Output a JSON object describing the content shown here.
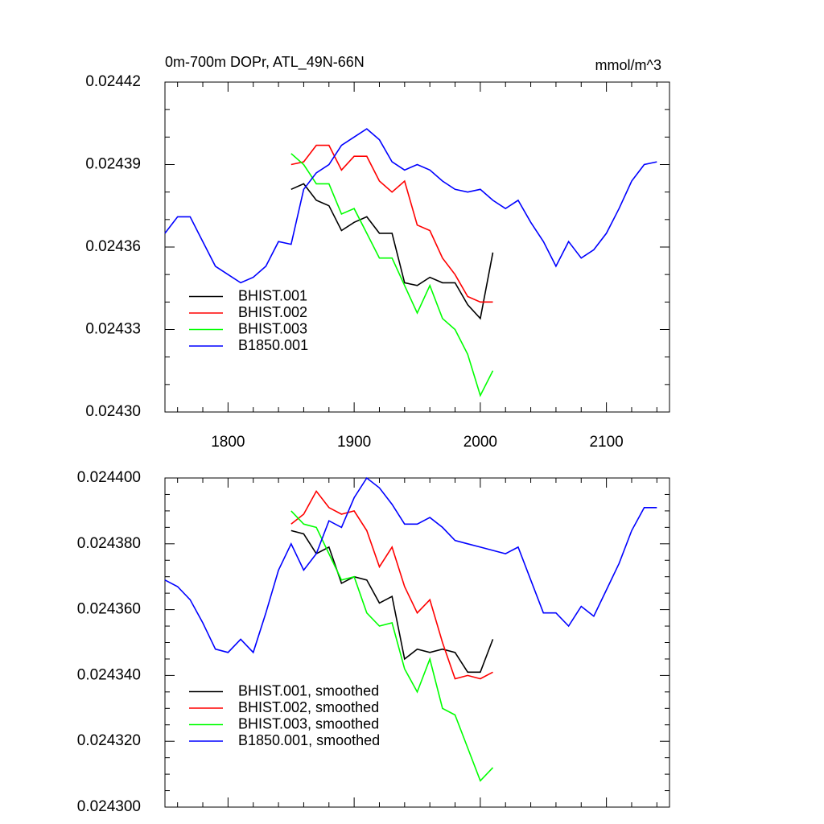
{
  "chart_data": [
    {
      "type": "line",
      "title": "0m-700m DOPr, ATL_49N-66N",
      "units_label": "mmol/m^3",
      "x": [
        1750,
        1760,
        1770,
        1780,
        1790,
        1800,
        1810,
        1820,
        1830,
        1840,
        1850,
        1860,
        1870,
        1880,
        1890,
        1900,
        1910,
        1920,
        1930,
        1940,
        1950,
        1960,
        1970,
        1980,
        1990,
        2000,
        2010,
        2020,
        2030,
        2040,
        2050,
        2060,
        2070,
        2080,
        2090,
        2100,
        2110,
        2120,
        2130,
        2140
      ],
      "xlim": [
        1750,
        2150
      ],
      "xticks": [
        1800,
        1900,
        2000,
        2100
      ],
      "ylim": [
        0.0243,
        0.02442
      ],
      "yticks": [
        {
          "value": 0.0243,
          "label": "0.02430"
        },
        0.02433,
        0.02436,
        0.02439,
        0.02442
      ],
      "legend": "lower left",
      "series": [
        {
          "name": "BHIST.001",
          "color": "#000000",
          "values": [
            null,
            null,
            null,
            null,
            null,
            null,
            null,
            null,
            null,
            null,
            0.024381,
            0.024383,
            0.024377,
            0.024375,
            0.024366,
            0.024369,
            0.024371,
            0.024365,
            0.024365,
            0.024347,
            0.024346,
            0.024349,
            0.024347,
            0.024347,
            0.024339,
            0.024334,
            0.024358,
            null,
            null,
            null,
            null,
            null,
            null,
            null,
            null,
            null,
            null,
            null,
            null,
            null
          ]
        },
        {
          "name": "BHIST.002",
          "color": "#ff0000",
          "values": [
            null,
            null,
            null,
            null,
            null,
            null,
            null,
            null,
            null,
            null,
            0.02439,
            0.024391,
            0.024397,
            0.024397,
            0.024388,
            0.024393,
            0.024393,
            0.024384,
            0.02438,
            0.024384,
            0.024368,
            0.024366,
            0.024356,
            0.02435,
            0.024342,
            0.02434,
            0.02434,
            null,
            null,
            null,
            null,
            null,
            null,
            null,
            null,
            null,
            null,
            null,
            null,
            null
          ]
        },
        {
          "name": "BHIST.003",
          "color": "#00ff00",
          "values": [
            null,
            null,
            null,
            null,
            null,
            null,
            null,
            null,
            null,
            null,
            0.024394,
            0.02439,
            0.024383,
            0.024383,
            0.024372,
            0.024374,
            0.024365,
            0.024356,
            0.024356,
            0.024346,
            0.024336,
            0.024346,
            0.024334,
            0.02433,
            0.024321,
            0.024306,
            0.024315,
            null,
            null,
            null,
            null,
            null,
            null,
            null,
            null,
            null,
            null,
            null,
            null,
            null
          ]
        },
        {
          "name": "B1850.001",
          "color": "#0000ff",
          "values": [
            0.024365,
            0.024371,
            0.024371,
            0.024362,
            0.024353,
            0.02435,
            0.024347,
            0.024349,
            0.024353,
            0.024362,
            0.024361,
            0.024381,
            0.024387,
            0.02439,
            0.024397,
            0.0244,
            0.024403,
            0.024399,
            0.024391,
            0.024388,
            0.02439,
            0.024388,
            0.024384,
            0.024381,
            0.02438,
            0.024381,
            0.024377,
            0.024374,
            0.024377,
            0.024369,
            0.024362,
            0.024353,
            0.024362,
            0.024356,
            0.024359,
            0.024365,
            0.024374,
            0.024384,
            0.02439,
            0.024391
          ]
        }
      ]
    },
    {
      "type": "line",
      "x": [
        1750,
        1760,
        1770,
        1780,
        1790,
        1800,
        1810,
        1820,
        1830,
        1840,
        1850,
        1860,
        1870,
        1880,
        1890,
        1900,
        1910,
        1920,
        1930,
        1940,
        1950,
        1960,
        1970,
        1980,
        1990,
        2000,
        2010,
        2020,
        2030,
        2040,
        2050,
        2060,
        2070,
        2080,
        2090,
        2100,
        2110,
        2120,
        2130,
        2140
      ],
      "xlim": [
        1750,
        2150
      ],
      "xticks": [
        1800,
        1900,
        2000,
        2100
      ],
      "xtick_labels": false,
      "ylim": [
        0.0243,
        0.0244
      ],
      "yticks": [
        {
          "value": 0.0243,
          "label": "0.024300"
        },
        {
          "value": 0.02432,
          "label": "0.024320"
        },
        {
          "value": 0.02434,
          "label": "0.024340"
        },
        {
          "value": 0.02436,
          "label": "0.024360"
        },
        {
          "value": 0.02438,
          "label": "0.024380"
        },
        {
          "value": 0.0244,
          "label": "0.024400"
        }
      ],
      "legend": "lower left",
      "series": [
        {
          "name": "BHIST.001, smoothed",
          "color": "#000000",
          "values": [
            null,
            null,
            null,
            null,
            null,
            null,
            null,
            null,
            null,
            null,
            0.024384,
            0.024383,
            0.024377,
            0.024379,
            0.024368,
            0.02437,
            0.024369,
            0.024362,
            0.024364,
            0.024345,
            0.024348,
            0.024347,
            0.024348,
            0.024347,
            0.024341,
            0.024341,
            0.024351,
            null,
            null,
            null,
            null,
            null,
            null,
            null,
            null,
            null,
            null,
            null,
            null,
            null
          ]
        },
        {
          "name": "BHIST.002, smoothed",
          "color": "#ff0000",
          "values": [
            null,
            null,
            null,
            null,
            null,
            null,
            null,
            null,
            null,
            null,
            0.024386,
            0.024389,
            0.024396,
            0.024391,
            0.024389,
            0.02439,
            0.024384,
            0.024373,
            0.024379,
            0.024367,
            0.024359,
            0.024363,
            0.02435,
            0.024339,
            0.02434,
            0.024339,
            0.024341,
            null,
            null,
            null,
            null,
            null,
            null,
            null,
            null,
            null,
            null,
            null,
            null,
            null
          ]
        },
        {
          "name": "BHIST.003, smoothed",
          "color": "#00ff00",
          "values": [
            null,
            null,
            null,
            null,
            null,
            null,
            null,
            null,
            null,
            null,
            0.02439,
            0.024386,
            0.024385,
            0.024377,
            0.024369,
            0.02437,
            0.024359,
            0.024355,
            0.024356,
            0.024342,
            0.024335,
            0.024345,
            0.02433,
            0.024328,
            0.024318,
            0.024308,
            0.024312,
            null,
            null,
            null,
            null,
            null,
            null,
            null,
            null,
            null,
            null,
            null,
            null,
            null
          ]
        },
        {
          "name": "B1850.001, smoothed",
          "color": "#0000ff",
          "values": [
            0.024369,
            0.024367,
            0.024363,
            0.024356,
            0.024348,
            0.024347,
            0.024351,
            0.024347,
            0.024359,
            0.024372,
            0.02438,
            0.024372,
            0.024377,
            0.024387,
            0.024385,
            0.024394,
            0.0244,
            0.024397,
            0.024392,
            0.024386,
            0.024386,
            0.024388,
            0.024385,
            0.024381,
            0.02438,
            0.024379,
            0.024378,
            0.024377,
            0.024379,
            0.024369,
            0.024359,
            0.024359,
            0.024355,
            0.024361,
            0.024358,
            0.024366,
            0.024374,
            0.024384,
            0.024391,
            0.024391
          ]
        }
      ]
    }
  ]
}
